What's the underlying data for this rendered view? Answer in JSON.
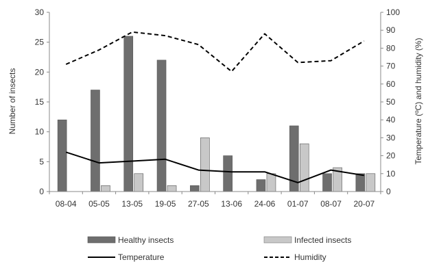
{
  "chart_data": {
    "type": "bar",
    "categories": [
      "08-04",
      "05-05",
      "13-05",
      "19-05",
      "27-05",
      "13-06",
      "24-06",
      "01-07",
      "08-07",
      "20-07"
    ],
    "series": [
      {
        "name": "Healthy insects",
        "kind": "bar",
        "axis": "left",
        "color": "#6e6e6e",
        "values": [
          12,
          17,
          26,
          22,
          1,
          6,
          2,
          11,
          3,
          3
        ]
      },
      {
        "name": "Infected insects",
        "kind": "bar",
        "axis": "left",
        "color": "#c8c8c8",
        "values": [
          0,
          1,
          3,
          1,
          9,
          0,
          3,
          8,
          4,
          3
        ]
      },
      {
        "name": "Temperature",
        "kind": "line",
        "axis": "right",
        "color": "#000000",
        "dash": "solid",
        "values": [
          22,
          16,
          17,
          18,
          12,
          11,
          11,
          5,
          12,
          9
        ]
      },
      {
        "name": "Humidity",
        "kind": "line",
        "axis": "right",
        "color": "#000000",
        "dash": "dashed",
        "values": [
          71,
          79,
          89,
          87,
          82,
          67,
          88,
          72,
          73,
          84
        ]
      }
    ],
    "ylabel": "Number of insects",
    "y2label": "Temperature (ºC) and humidity (%)",
    "ylim": [
      0,
      30
    ],
    "yticks": [
      "0",
      "5",
      "10",
      "15",
      "20",
      "25",
      "30"
    ],
    "y2lim": [
      0,
      100
    ],
    "y2ticks": [
      "0",
      "10",
      "20",
      "30",
      "40",
      "50",
      "60",
      "70",
      "80",
      "90",
      "100"
    ],
    "grid": false,
    "legend_position": "bottom"
  }
}
